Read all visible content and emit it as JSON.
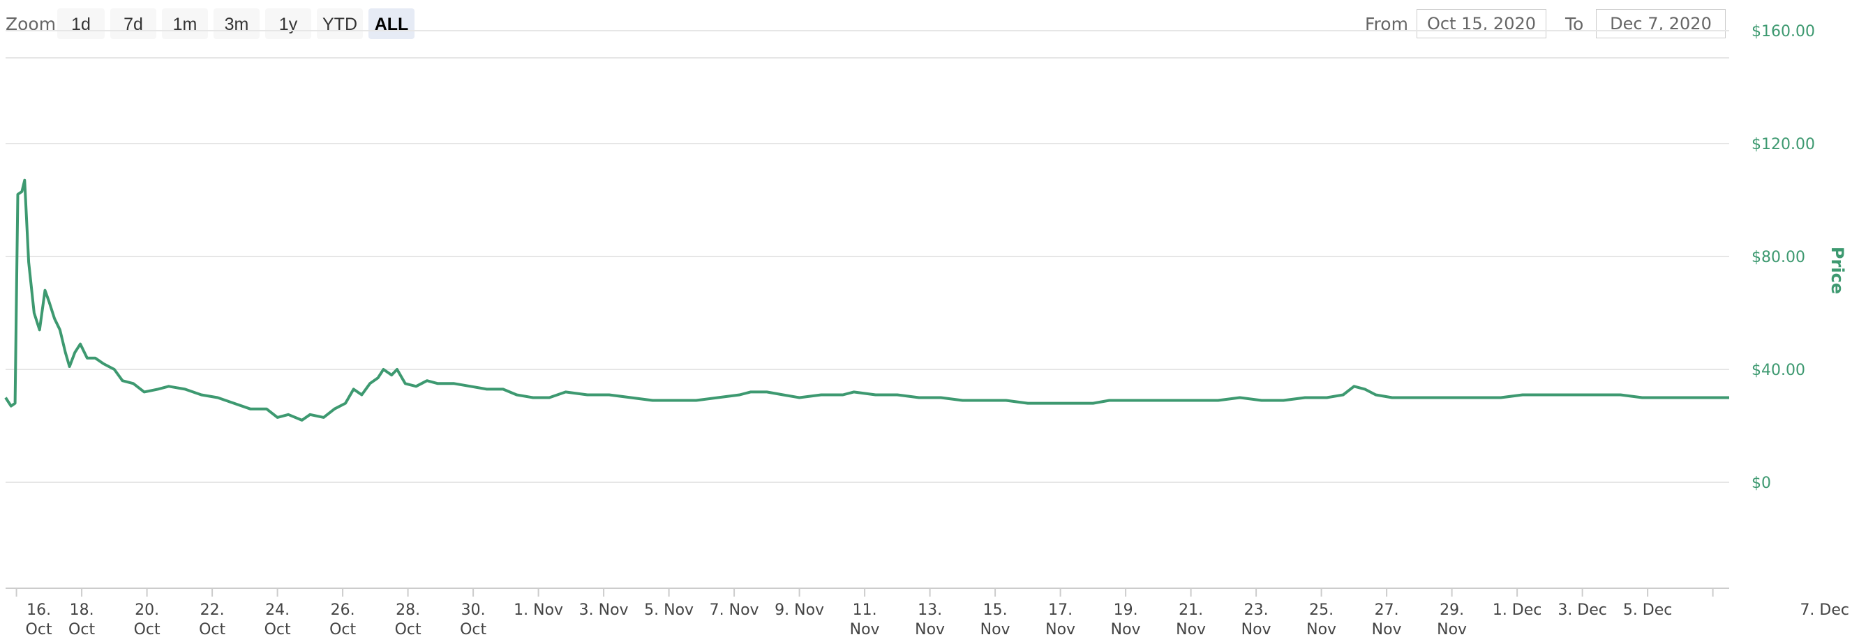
{
  "toolbar": {
    "zoom_label": "Zoom",
    "zoom_buttons": [
      "1d",
      "7d",
      "1m",
      "3m",
      "1y",
      "YTD",
      "ALL"
    ],
    "active_zoom": "ALL",
    "from_label": "From",
    "from_value": "Oct 15, 2020",
    "to_label": "To",
    "to_value": "Dec 7, 2020"
  },
  "colors": {
    "line": "#3d9970",
    "grid": "#e6e6e6",
    "axis_labels": "#3d9970"
  },
  "chart_data": {
    "type": "line",
    "ylabel": "Price",
    "y_ticks": [
      "$0",
      "$40.00",
      "$80.00",
      "$120.00",
      "$160.00"
    ],
    "ylim": [
      0,
      160
    ],
    "x_ticks": [
      [
        "16.",
        "Oct"
      ],
      [
        "18.",
        "Oct"
      ],
      [
        "20.",
        "Oct"
      ],
      [
        "22.",
        "Oct"
      ],
      [
        "24.",
        "Oct"
      ],
      [
        "26.",
        "Oct"
      ],
      [
        "28.",
        "Oct"
      ],
      [
        "30.",
        "Oct"
      ],
      [
        "1. Nov",
        ""
      ],
      [
        "3. Nov",
        ""
      ],
      [
        "5. Nov",
        ""
      ],
      [
        "7. Nov",
        ""
      ],
      [
        "9. Nov",
        ""
      ],
      [
        "11.",
        "Nov"
      ],
      [
        "13.",
        "Nov"
      ],
      [
        "15.",
        "Nov"
      ],
      [
        "17.",
        "Nov"
      ],
      [
        "19.",
        "Nov"
      ],
      [
        "21.",
        "Nov"
      ],
      [
        "23.",
        "Nov"
      ],
      [
        "25.",
        "Nov"
      ],
      [
        "27.",
        "Nov"
      ],
      [
        "29.",
        "Nov"
      ],
      [
        "1. Dec",
        ""
      ],
      [
        "3. Dec",
        ""
      ],
      [
        "5. Dec",
        ""
      ],
      [
        "7. Dec",
        ""
      ]
    ],
    "xlim": [
      "2020-10-15T16:00",
      "2020-12-07T12:00"
    ],
    "grid": true,
    "series": [
      {
        "values": [
          [
            "2020-10-15T16:00",
            30
          ],
          [
            "2020-10-15T20:00",
            27
          ],
          [
            "2020-10-15T23:00",
            28
          ],
          [
            "2020-10-16T01:00",
            102
          ],
          [
            "2020-10-16T04:00",
            103
          ],
          [
            "2020-10-16T06:00",
            107
          ],
          [
            "2020-10-16T09:00",
            78
          ],
          [
            "2020-10-16T13:00",
            60
          ],
          [
            "2020-10-16T17:00",
            54
          ],
          [
            "2020-10-16T21:00",
            68
          ],
          [
            "2020-10-17T00:00",
            64
          ],
          [
            "2020-10-17T04:00",
            58
          ],
          [
            "2020-10-17T08:00",
            54
          ],
          [
            "2020-10-17T12:00",
            46
          ],
          [
            "2020-10-17T15:00",
            41
          ],
          [
            "2020-10-17T19:00",
            46
          ],
          [
            "2020-10-17T23:00",
            49
          ],
          [
            "2020-10-18T04:00",
            44
          ],
          [
            "2020-10-18T10:00",
            44
          ],
          [
            "2020-10-18T16:00",
            42
          ],
          [
            "2020-10-19T00:00",
            40
          ],
          [
            "2020-10-19T06:00",
            36
          ],
          [
            "2020-10-19T14:00",
            35
          ],
          [
            "2020-10-19T22:00",
            32
          ],
          [
            "2020-10-20T08:00",
            33
          ],
          [
            "2020-10-20T16:00",
            34
          ],
          [
            "2020-10-21T04:00",
            33
          ],
          [
            "2020-10-21T16:00",
            31
          ],
          [
            "2020-10-22T04:00",
            30
          ],
          [
            "2020-10-22T16:00",
            28
          ],
          [
            "2020-10-23T04:00",
            26
          ],
          [
            "2020-10-23T16:00",
            26
          ],
          [
            "2020-10-24T00:00",
            23
          ],
          [
            "2020-10-24T08:00",
            24
          ],
          [
            "2020-10-24T18:00",
            22
          ],
          [
            "2020-10-25T00:00",
            24
          ],
          [
            "2020-10-25T10:00",
            23
          ],
          [
            "2020-10-25T18:00",
            26
          ],
          [
            "2020-10-26T02:00",
            28
          ],
          [
            "2020-10-26T08:00",
            33
          ],
          [
            "2020-10-26T14:00",
            31
          ],
          [
            "2020-10-26T20:00",
            35
          ],
          [
            "2020-10-27T02:00",
            37
          ],
          [
            "2020-10-27T06:00",
            40
          ],
          [
            "2020-10-27T12:00",
            38
          ],
          [
            "2020-10-27T16:00",
            40
          ],
          [
            "2020-10-27T22:00",
            35
          ],
          [
            "2020-10-28T06:00",
            34
          ],
          [
            "2020-10-28T14:00",
            36
          ],
          [
            "2020-10-28T22:00",
            35
          ],
          [
            "2020-10-29T10:00",
            35
          ],
          [
            "2020-10-29T22:00",
            34
          ],
          [
            "2020-10-30T10:00",
            33
          ],
          [
            "2020-10-30T22:00",
            33
          ],
          [
            "2020-10-31T08:00",
            31
          ],
          [
            "2020-10-31T20:00",
            30
          ],
          [
            "2020-11-01T08:00",
            30
          ],
          [
            "2020-11-01T20:00",
            32
          ],
          [
            "2020-11-02T12:00",
            31
          ],
          [
            "2020-11-03T04:00",
            31
          ],
          [
            "2020-11-03T20:00",
            30
          ],
          [
            "2020-11-04T12:00",
            29
          ],
          [
            "2020-11-05T04:00",
            29
          ],
          [
            "2020-11-05T20:00",
            29
          ],
          [
            "2020-11-06T12:00",
            30
          ],
          [
            "2020-11-07T04:00",
            31
          ],
          [
            "2020-11-07T12:00",
            32
          ],
          [
            "2020-11-08T00:00",
            32
          ],
          [
            "2020-11-08T12:00",
            31
          ],
          [
            "2020-11-09T00:00",
            30
          ],
          [
            "2020-11-09T16:00",
            31
          ],
          [
            "2020-11-10T08:00",
            31
          ],
          [
            "2020-11-10T16:00",
            32
          ],
          [
            "2020-11-11T08:00",
            31
          ],
          [
            "2020-11-12T00:00",
            31
          ],
          [
            "2020-11-12T16:00",
            30
          ],
          [
            "2020-11-13T08:00",
            30
          ],
          [
            "2020-11-14T00:00",
            29
          ],
          [
            "2020-11-14T16:00",
            29
          ],
          [
            "2020-11-15T08:00",
            29
          ],
          [
            "2020-11-16T00:00",
            28
          ],
          [
            "2020-11-16T16:00",
            28
          ],
          [
            "2020-11-17T08:00",
            28
          ],
          [
            "2020-11-18T00:00",
            28
          ],
          [
            "2020-11-18T12:00",
            29
          ],
          [
            "2020-11-19T04:00",
            29
          ],
          [
            "2020-11-19T20:00",
            29
          ],
          [
            "2020-11-20T12:00",
            29
          ],
          [
            "2020-11-21T04:00",
            29
          ],
          [
            "2020-11-21T20:00",
            29
          ],
          [
            "2020-11-22T12:00",
            30
          ],
          [
            "2020-11-23T04:00",
            29
          ],
          [
            "2020-11-23T20:00",
            29
          ],
          [
            "2020-11-24T12:00",
            30
          ],
          [
            "2020-11-25T04:00",
            30
          ],
          [
            "2020-11-25T16:00",
            31
          ],
          [
            "2020-11-26T00:00",
            34
          ],
          [
            "2020-11-26T08:00",
            33
          ],
          [
            "2020-11-26T16:00",
            31
          ],
          [
            "2020-11-27T04:00",
            30
          ],
          [
            "2020-11-27T20:00",
            30
          ],
          [
            "2020-11-28T12:00",
            30
          ],
          [
            "2020-11-29T04:00",
            30
          ],
          [
            "2020-11-29T20:00",
            30
          ],
          [
            "2020-11-30T12:00",
            30
          ],
          [
            "2020-12-01T04:00",
            31
          ],
          [
            "2020-12-01T16:00",
            31
          ],
          [
            "2020-12-02T04:00",
            31
          ],
          [
            "2020-12-02T20:00",
            31
          ],
          [
            "2020-12-03T12:00",
            31
          ],
          [
            "2020-12-04T04:00",
            31
          ],
          [
            "2020-12-04T20:00",
            30
          ],
          [
            "2020-12-05T12:00",
            30
          ],
          [
            "2020-12-06T04:00",
            30
          ],
          [
            "2020-12-06T20:00",
            30
          ],
          [
            "2020-12-07T12:00",
            30
          ]
        ]
      }
    ]
  }
}
